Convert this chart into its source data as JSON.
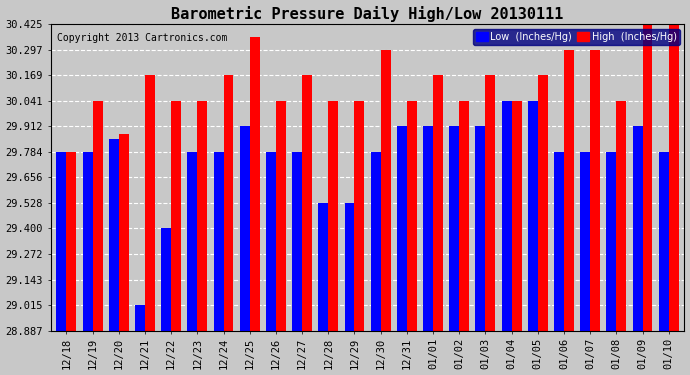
{
  "title": "Barometric Pressure Daily High/Low 20130111",
  "copyright": "Copyright 2013 Cartronics.com",
  "legend_low": "Low  (Inches/Hg)",
  "legend_high": "High  (Inches/Hg)",
  "low_color": "#0000ff",
  "high_color": "#ff0000",
  "background_color": "#c8c8c8",
  "plot_bg_color": "#c8c8c8",
  "ymin": 28.887,
  "ymax": 30.425,
  "yticks": [
    28.887,
    29.015,
    29.143,
    29.272,
    29.4,
    29.528,
    29.656,
    29.784,
    29.912,
    30.041,
    30.169,
    30.297,
    30.425
  ],
  "categories": [
    "12/18",
    "12/19",
    "12/20",
    "12/21",
    "12/22",
    "12/23",
    "12/24",
    "12/25",
    "12/26",
    "12/27",
    "12/28",
    "12/29",
    "12/30",
    "12/31",
    "01/01",
    "01/02",
    "01/03",
    "01/04",
    "01/05",
    "01/06",
    "01/07",
    "01/08",
    "01/09",
    "01/10"
  ],
  "low_values": [
    29.784,
    29.784,
    29.85,
    29.015,
    29.4,
    29.784,
    29.784,
    29.912,
    29.784,
    29.784,
    29.528,
    29.528,
    29.784,
    29.912,
    29.912,
    29.912,
    29.912,
    30.041,
    30.041,
    29.784,
    29.784,
    29.784,
    29.912,
    29.784
  ],
  "high_values": [
    29.784,
    30.041,
    29.872,
    30.169,
    30.041,
    30.041,
    30.169,
    30.36,
    30.041,
    30.169,
    30.041,
    30.041,
    30.297,
    30.041,
    30.169,
    30.041,
    30.169,
    30.041,
    30.169,
    30.297,
    30.297,
    30.041,
    30.425,
    30.425
  ],
  "grid_color": "white",
  "grid_style": "--",
  "bar_width": 0.38,
  "title_fontsize": 11,
  "tick_fontsize": 7.5,
  "copyright_fontsize": 7
}
